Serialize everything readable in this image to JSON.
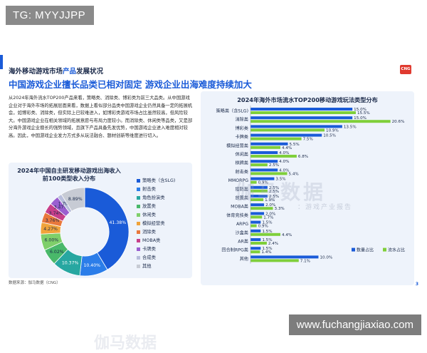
{
  "overlay": {
    "top_left": "TG: MYYJJPP",
    "bottom_right": "www.fuchangjiaxiao.com"
  },
  "slide": {
    "kicker_pre": "海外移动游戏市场",
    "kicker_hl": "产品",
    "kicker_post": "发展状况",
    "logo": "CNG",
    "headline": "中国游戏企业擅长品类已相对固定 游戏企业出海难度持续加大",
    "body": "从2024年海外流水TOP200产品来看，策略类、消除类、博彩类为前三大品类。从中国游戏企业对于海外市场的拓展层面来看，数据上看似部分品类中国游戏企业仍然具备一定的拓展机会，如博彩类、消除类，但实际上已较难进入，如博彩类游戏市场占比虽然较高，但风险较大。中国游戏企业在相关领域的拓展意愿与布局力度较小。而消除类、休闲类等品类，又是部分海外游戏企业擅长的强势领域，且旗下产品具备先发优势，中国游戏企业进入难度相对较高。因此，中国游戏企业发力方式多从玩法融合、题材创新等维度进行切入。",
    "source": "数据来源：伽马数据（CNG）",
    "page_num": "3",
    "watermark": "伽马数据",
    "watermark_sub": "：游戏产业报告"
  },
  "donut_chart": {
    "title_line1": "2024年中国自主研发移动游戏出海收入",
    "title_line2": "前100类型收入分布",
    "legend": [
      "策略类（含SLG)",
      "射击类",
      "角色扮演类",
      "放置类",
      "休闲类",
      "模拟经营类",
      "消除类",
      "MOBA类",
      "卡牌类",
      "合成类",
      "其他"
    ]
  },
  "chart_data": [
    {
      "type": "pie",
      "title": "2024年中国自主研发移动游戏出海收入前100类型收入分布",
      "categories": [
        "策略类（含SLG)",
        "射击类",
        "角色扮演类",
        "放置类",
        "休闲类",
        "模拟经营类",
        "消除类",
        "MOBA类",
        "卡牌类",
        "合成类",
        "其他"
      ],
      "values": [
        41.38,
        10.4,
        10.37,
        6.02,
        6.0,
        4.27,
        3.76,
        3.74,
        3.47,
        1.7,
        8.89
      ],
      "labels": [
        "41.38%",
        "10.40%",
        "10.37%",
        "6.02%",
        "6.00%",
        "4.27%",
        "3.76%",
        "3.74%",
        "3.47%",
        "1.70%",
        "8.89%"
      ],
      "colors": [
        "#1a5bd8",
        "#2b7de9",
        "#27a7a1",
        "#49b86a",
        "#7fcf6a",
        "#f0a33a",
        "#e8783c",
        "#c73f8a",
        "#9a5fd0",
        "#b8bedb",
        "#c7cbd4"
      ],
      "inner_ratio": 0.55
    },
    {
      "type": "bar",
      "title": "2024年海外市场流水TOP200移动游戏玩法类型分布",
      "categories": [
        "策略类（含SLG)",
        "消除类",
        "博彩类",
        "卡牌类",
        "模拟经营类",
        "休闲类",
        "棋牌类",
        "射击类",
        "MMORPG",
        "塔防类",
        "放置类",
        "MOBA类",
        "体育竞技类",
        "ARPG",
        "沙盒类",
        "AR类",
        "回合制RPG类",
        "其他"
      ],
      "series": [
        {
          "name": "数量占比",
          "color": "#1a5bd8",
          "values": [
            15.0,
            15.0,
            13.5,
            10.5,
            5.5,
            4.0,
            4.0,
            4.0,
            3.5,
            2.5,
            2.5,
            2.0,
            2.0,
            1.5,
            1.5,
            1.5,
            1.5,
            10.0
          ],
          "labels": [
            "15.0%",
            "15.0%",
            "13.5%",
            "10.5%",
            "5.5%",
            "4.0%",
            "4.0%",
            "4.0%",
            "3.5%",
            "2.5%",
            "2.5%",
            "2.0%",
            "2.0%",
            "1.5%",
            "1.5%",
            "1.5%",
            "1.5%",
            "10.0%"
          ]
        },
        {
          "name": "流水占比",
          "color": "#7fcf3a",
          "values": [
            15.5,
            20.6,
            10.9,
            7.5,
            4.4,
            6.8,
            2.5,
            5.4,
            0.9,
            2.5,
            1.9,
            3.3,
            1.7,
            0.9,
            4.4,
            2.4,
            1.4,
            7.1
          ],
          "labels": [
            "15.5%",
            "20.6%",
            "10.9%",
            "7.5%",
            "4.4%",
            "6.8%",
            "2.5%",
            "5.4%",
            "0.9%",
            "2.5%",
            "1.9%",
            "3.3%",
            "1.7%",
            "0.9%",
            "4.4%",
            "2.4%",
            "1.4%",
            "7.1%"
          ]
        }
      ],
      "xlim": [
        0,
        22
      ],
      "legend_position": "bottom-right"
    }
  ]
}
